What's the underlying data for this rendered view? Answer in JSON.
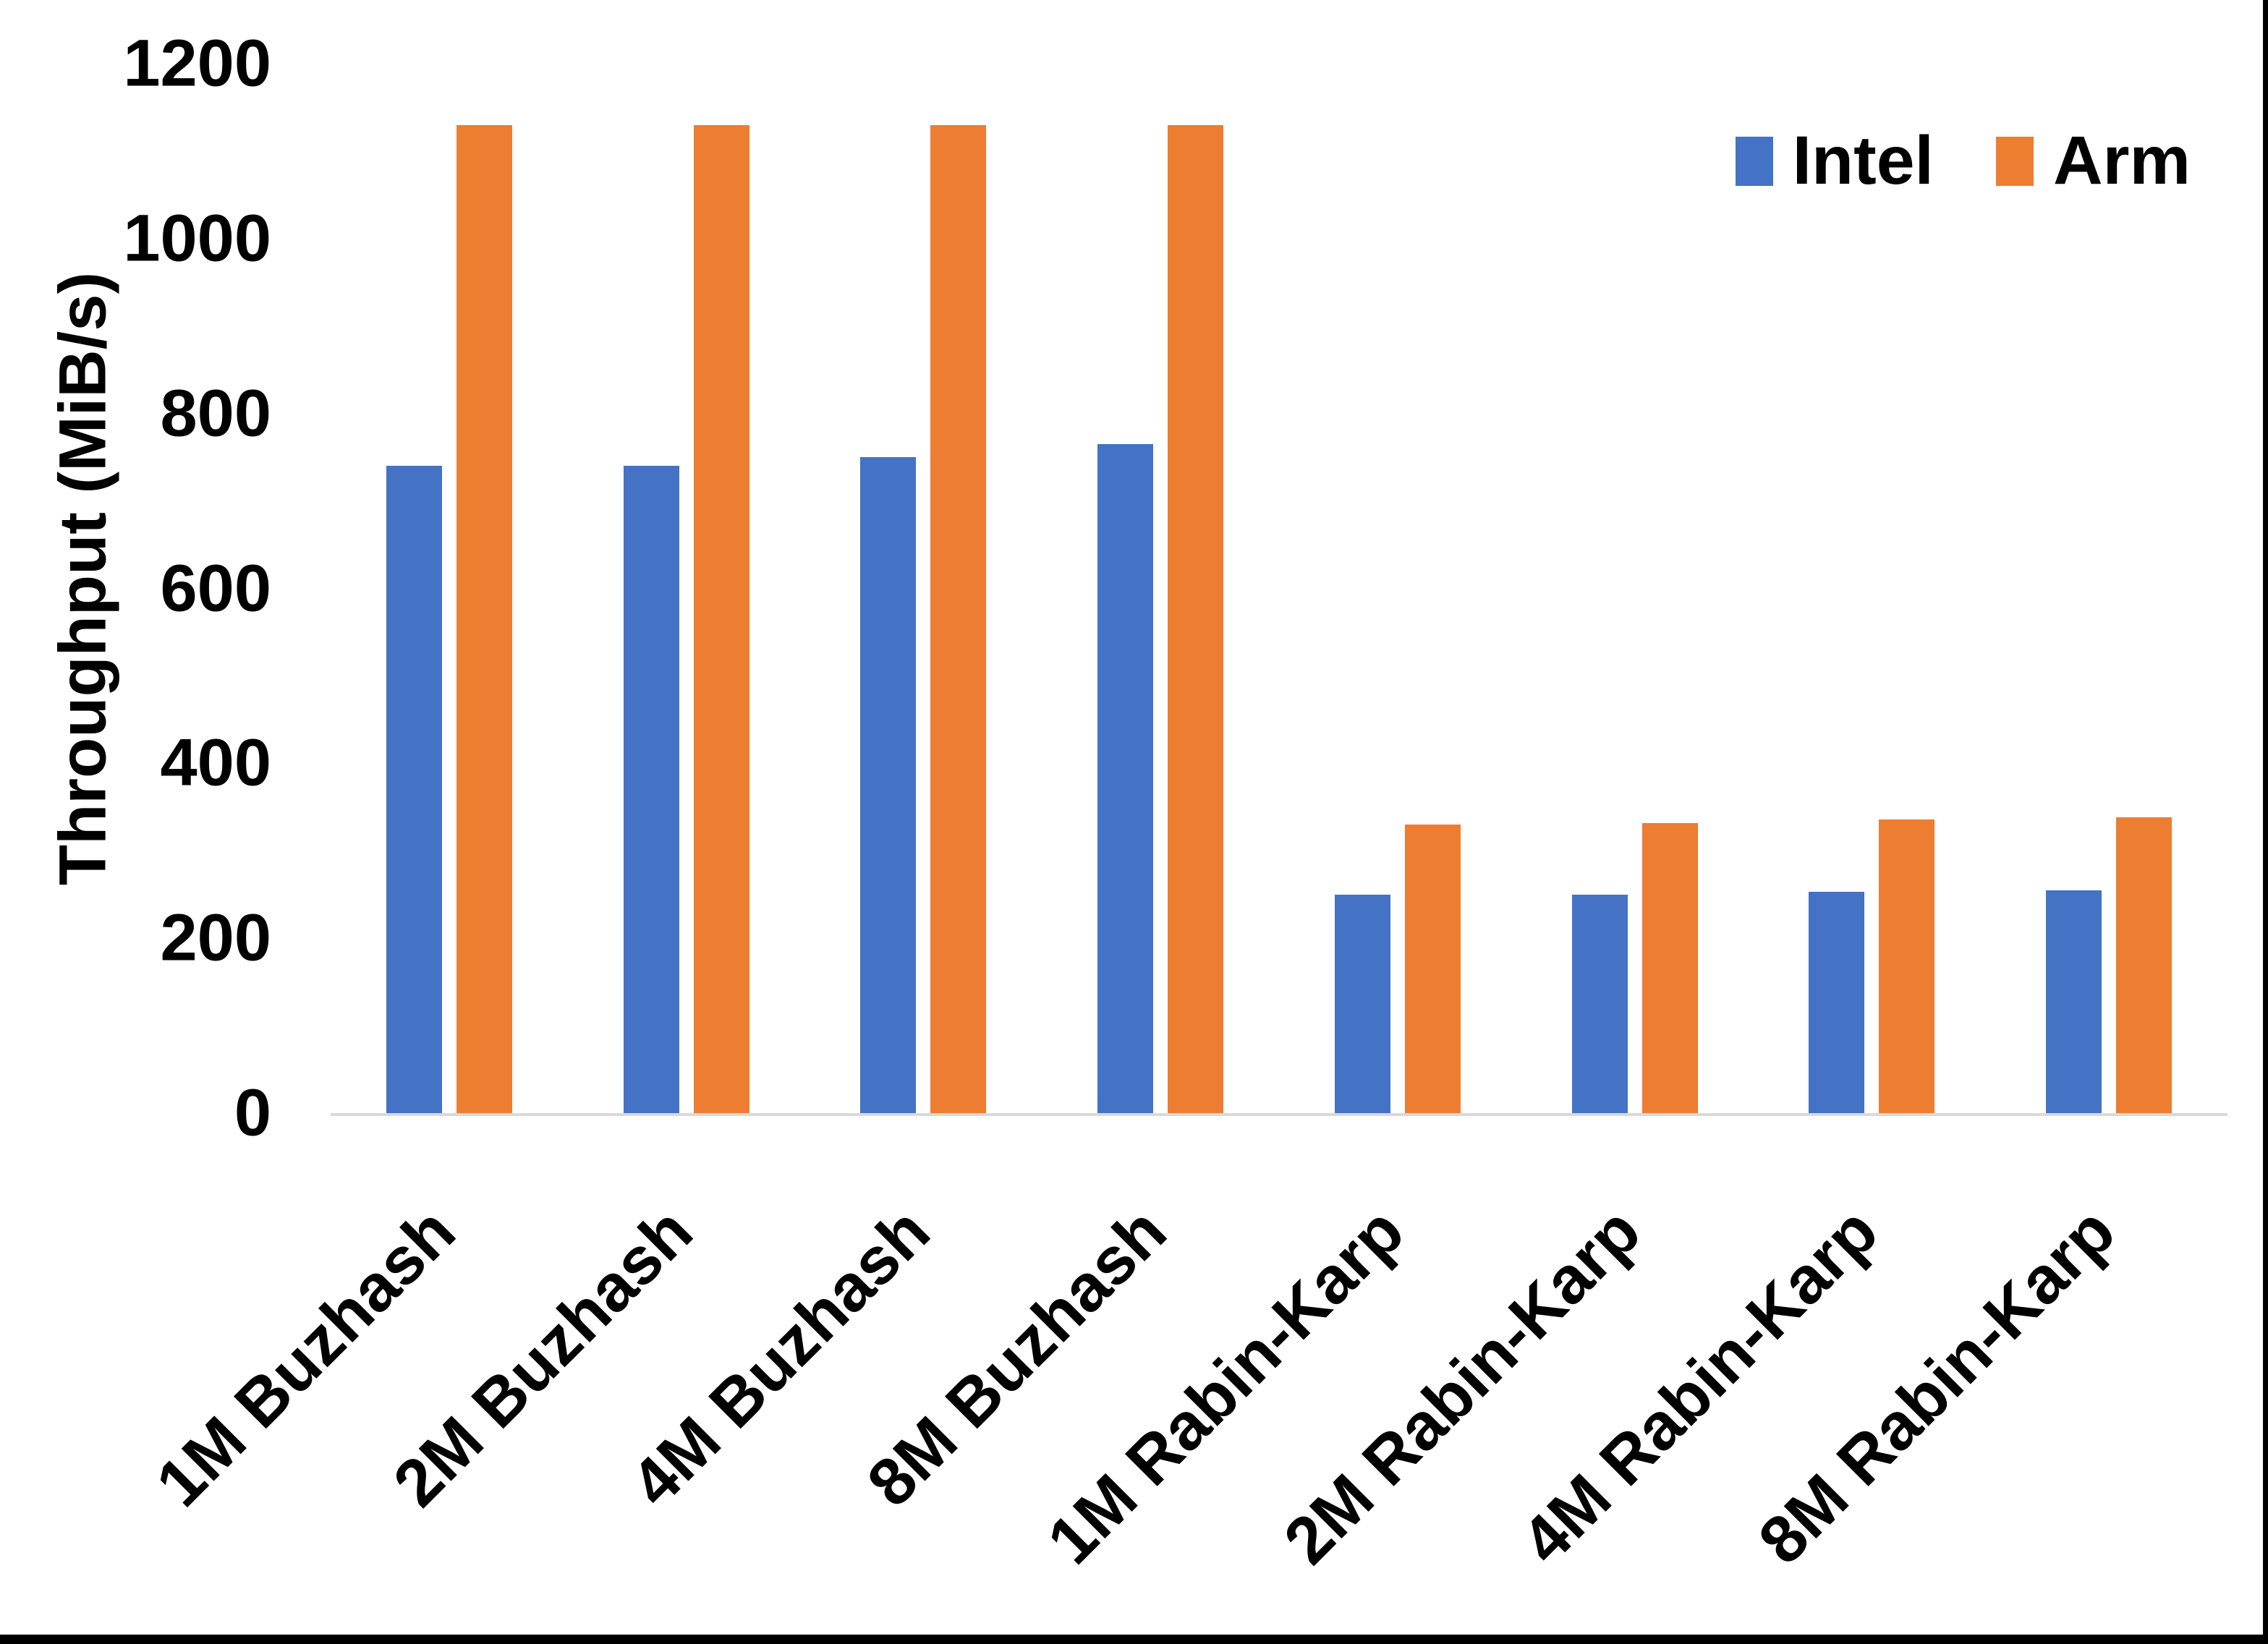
{
  "figure": {
    "background": "#ffffff",
    "border_color": "#000000"
  },
  "chart_data": {
    "type": "bar",
    "title": "",
    "xlabel": "",
    "ylabel": "Throughput (MiB/s)",
    "ylim": [
      0,
      1200
    ],
    "yticks": [
      0,
      200,
      400,
      600,
      800,
      1000,
      1200
    ],
    "grid": false,
    "legend_position": "top-right",
    "categories": [
      "1M Buzhash",
      "2M Buzhash",
      "4M Buzhash",
      "8M Buzhash",
      "1M Rabin-Karp",
      "2M Rabin-Karp",
      "4M Rabin-Karp",
      "8M Rabin-Karp"
    ],
    "series": [
      {
        "name": "Intel",
        "color": "#4472C4",
        "values": [
          740,
          740,
          750,
          765,
          250,
          250,
          253,
          255
        ]
      },
      {
        "name": "Arm",
        "color": "#ED7D31",
        "values": [
          1130,
          1130,
          1130,
          1130,
          330,
          332,
          336,
          338
        ]
      }
    ],
    "axis_line_color": "#D9D9D9",
    "text_color": "#000000"
  }
}
